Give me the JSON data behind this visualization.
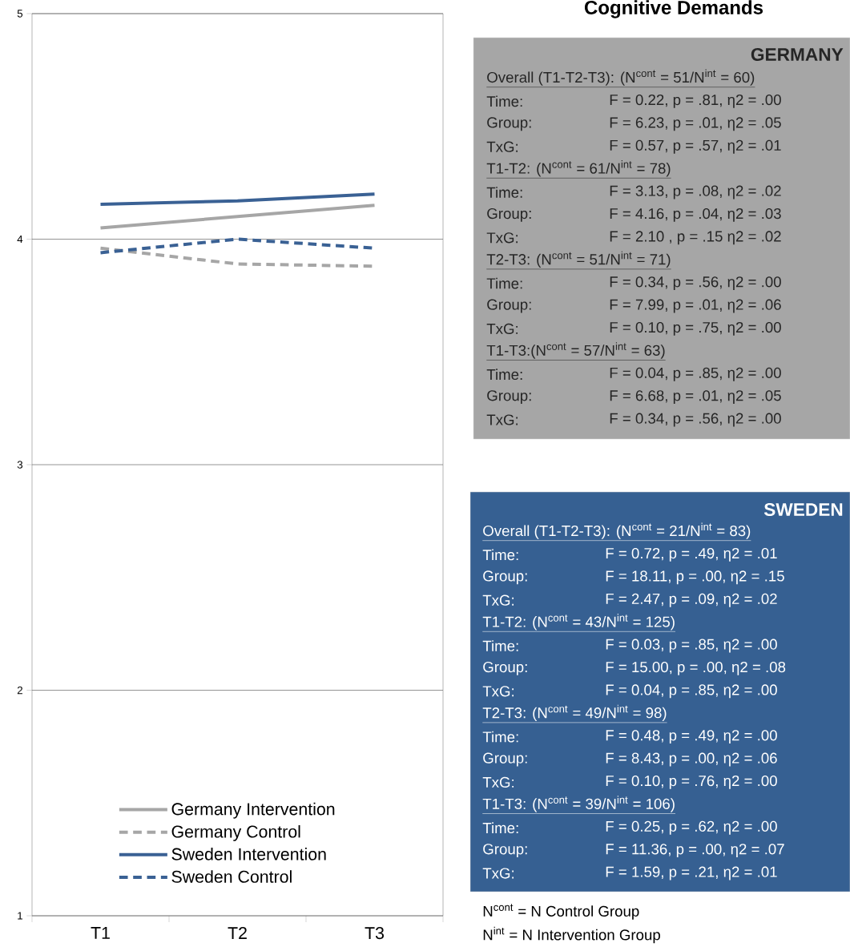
{
  "chart_data": {
    "type": "line",
    "title": "Cognitive Demands",
    "categories": [
      "T1",
      "T2",
      "T3"
    ],
    "series": [
      {
        "name": "Germany Intervention",
        "color": "#a6a6a6",
        "line_style": "solid",
        "values": [
          4.05,
          4.1,
          4.15
        ]
      },
      {
        "name": "Germany Control",
        "color": "#a6a6a6",
        "line_style": "dashed",
        "values": [
          3.96,
          3.89,
          3.88
        ]
      },
      {
        "name": "Sweden Intervention",
        "color": "#3a6194",
        "line_style": "solid",
        "values": [
          4.155,
          4.17,
          4.2
        ]
      },
      {
        "name": "Sweden Control",
        "color": "#3a6194",
        "line_style": "dashed",
        "values": [
          3.94,
          4.0,
          3.96
        ]
      }
    ],
    "ylim": [
      1,
      5
    ],
    "yticks": [
      1,
      2,
      3,
      4,
      5
    ],
    "grid": "y",
    "legend": "bottom left",
    "annotations": [
      "GERMANY",
      "Overall (T1-T2-T3): (N$^{cont}$ = 51/N$^{int}$ = 60)",
      "Time:",
      "F = 0.22, p = .81, η2 = .00",
      "Group:",
      "F = 6.23, p = .01, η2 = .05",
      "TxG:",
      "F = 0.57, p = .57, η2 = .01",
      "T1-T2: (N$^{cont}$ = 61/N$^{int}$ = 78)",
      "Time:",
      "F = 3.13, p = .08, η2 = .02",
      "Group:",
      "F = 4.16, p = .04, η2 = .03",
      "TxG:",
      "F = 2.10 , p = .15 η2 = .02",
      "T2-T3: (N$^{cont}$ = 51/N$^{int}$ = 71)",
      "Time:",
      "F = 0.34, p = .56, η2 = .00",
      "Group:",
      "F = 7.99, p = .01, η2 = .06",
      "TxG:",
      "F = 0.10, p = .75, η2 = .00",
      "T1-T3:(N$^{cont}$ = 57/N$^{int}$ = 63)",
      "Time:",
      "F = 0.04, p = .85, η2 = .00",
      "Group:",
      "F = 6.68, p = .01, η2 = .05",
      "TxG:",
      "F = 0.34, p = .56, η2 = .00",
      "SWEDEN",
      "Overall (T1-T2-T3): (N$^{cont}$ = 21/N$^{int}$ = 83)",
      "Time:",
      "F = 0.72, p = .49, η2 = .01",
      "Group:",
      "F = 18.11, p = .00, η2 = .15",
      "TxG:",
      "F = 2.47, p = .09, η2 = .02",
      "T1-T2: (N$^{cont}$ = 43/N$^{int}$ = 125)",
      "Time:",
      "F = 0.03, p = .85, η2 = .00",
      "Group:",
      "F = 15.00, p = .00, η2 = .08",
      "TxG:",
      "F = 0.04, p = .85, η2 = .00",
      "T2-T3: (N$^{cont}$ = 49/N$^{int}$ = 98)",
      "Time:",
      "F = 0.48, p = .49, η2 = .00",
      "Group:",
      "F = 8.43, p = .00, η2 = .06",
      "TxG:",
      "F = 0.10, p = .76, η2 = .00",
      "T1-T3: (N$^{cont}$ = 39/N$^{int}$ = 106)",
      "Time:",
      "F = 0.25, p = .62, η2 = .00",
      "Group:",
      "F = 11.36, p = .00, η2 = .07",
      "TxG:",
      "F = 1.59, p = .21, η2 = .01",
      "N$^{cont}$ = N Control Group",
      "N$^{int}$ = N Intervention Group"
    ]
  }
}
